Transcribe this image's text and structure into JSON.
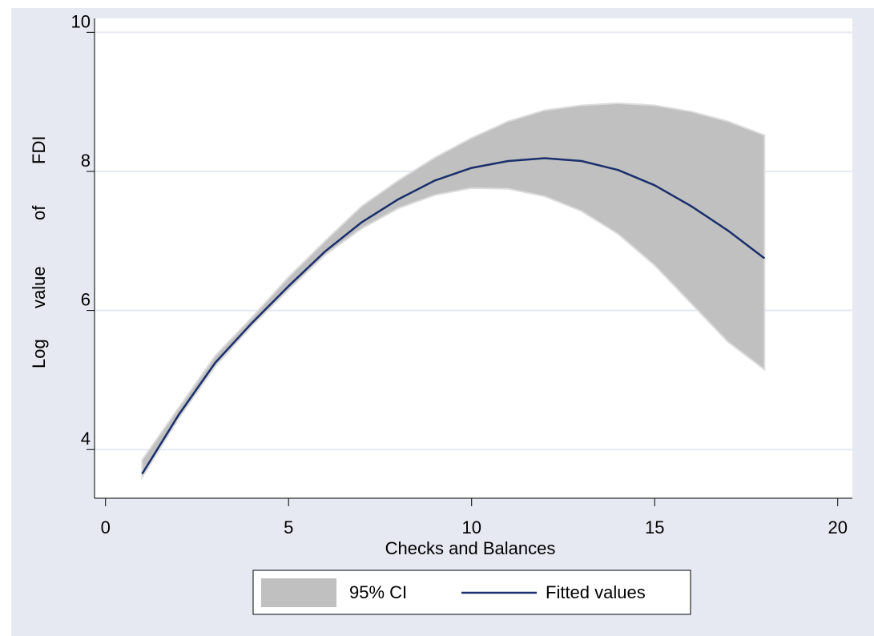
{
  "chart_data": {
    "type": "line",
    "xlabel": "Checks and Balances",
    "ylabel_words": [
      "Log",
      "value",
      "of",
      "FDI"
    ],
    "xlim": [
      -0.3,
      20.4
    ],
    "ylim": [
      3.3,
      10.2
    ],
    "x_ticks": [
      0,
      5,
      10,
      15,
      20
    ],
    "x_tick_labels": [
      "0",
      "5",
      "10",
      "15",
      "20"
    ],
    "y_ticks": [
      4,
      6,
      8,
      10
    ],
    "y_tick_labels": [
      "4",
      "6",
      "8",
      "10"
    ],
    "grid": true,
    "legend_position": "bottom",
    "series": [
      {
        "name": "Fitted values",
        "kind": "line",
        "color": "#1a2f6b",
        "x": [
          1,
          2,
          3,
          4,
          5,
          6,
          7,
          8,
          9,
          10,
          11,
          12,
          13,
          14,
          15,
          16,
          17,
          18
        ],
        "y": [
          3.65,
          4.5,
          5.25,
          5.82,
          6.35,
          6.85,
          7.27,
          7.6,
          7.87,
          8.05,
          8.15,
          8.19,
          8.15,
          8.02,
          7.8,
          7.5,
          7.15,
          6.75
        ]
      },
      {
        "name": "95% CI",
        "kind": "band",
        "color": "#c0c0c0",
        "x": [
          1,
          2,
          3,
          4,
          5,
          6,
          7,
          8,
          9,
          10,
          11,
          12,
          13,
          14,
          15,
          16,
          17,
          18
        ],
        "lower": [
          3.6,
          4.45,
          5.2,
          5.78,
          6.3,
          6.8,
          7.18,
          7.47,
          7.66,
          7.76,
          7.75,
          7.64,
          7.43,
          7.1,
          6.65,
          6.1,
          5.55,
          5.15
        ],
        "upper": [
          3.85,
          4.6,
          5.35,
          5.9,
          6.48,
          7.0,
          7.5,
          7.87,
          8.2,
          8.48,
          8.72,
          8.88,
          8.95,
          8.98,
          8.95,
          8.86,
          8.72,
          8.52
        ]
      }
    ]
  }
}
